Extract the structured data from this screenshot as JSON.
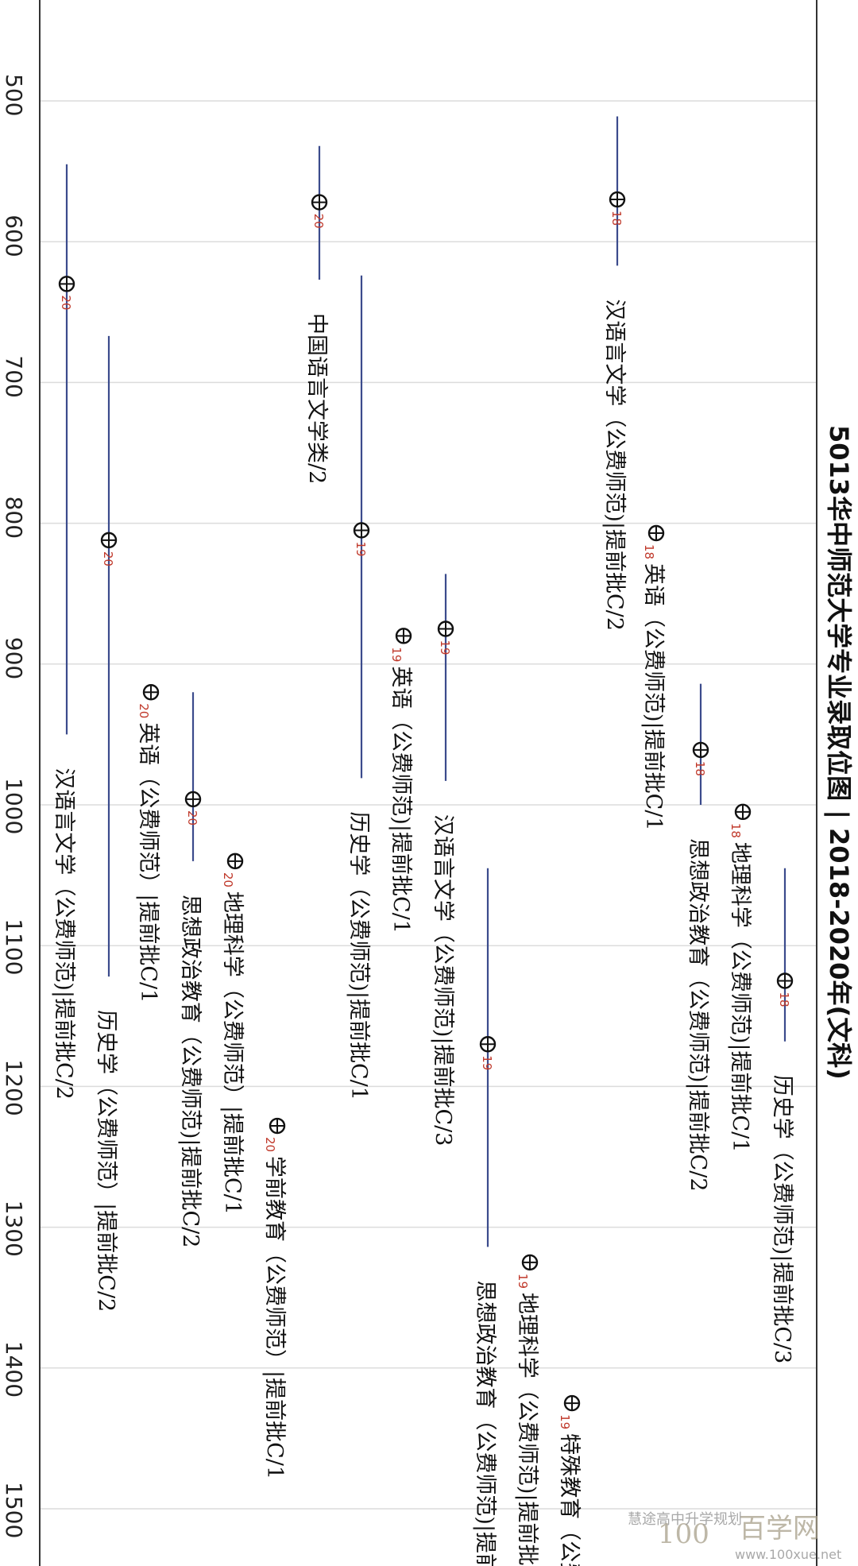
{
  "chart_data": {
    "type": "scatter",
    "title": "5013华中师范大学专业录取位图 | 2018-2020年(文科)",
    "axis": {
      "range": [
        440,
        1540
      ],
      "ticks": [
        500,
        600,
        700,
        800,
        900,
        1000,
        1100,
        1200,
        1300,
        1400,
        1500
      ],
      "grid": true
    },
    "points": [
      {
        "label": "汉语言文学（公费师范)|提前批C/2",
        "year": "20",
        "value": 630,
        "range": [
          545,
          950
        ]
      },
      {
        "label": "历史学（公费师范）|提前批C/2",
        "year": "20",
        "value": 812,
        "range": [
          667,
          1122
        ]
      },
      {
        "label": "英语（公费师范）|提前批C/1",
        "year": "20",
        "value": 920
      },
      {
        "label": "思想政治教育（公费师范)|提前批C/2",
        "year": "20",
        "value": 996,
        "range": [
          920,
          1040
        ]
      },
      {
        "label": "地理科学（公费师范）|提前批C/1",
        "year": "20",
        "value": 1040
      },
      {
        "label": "学前教育（公费师范）|提前批C/1",
        "year": "20",
        "value": 1228
      },
      {
        "label": "中国语言文学类/2",
        "year": "20",
        "value": 572,
        "range": [
          532,
          627
        ]
      },
      {
        "label": "历史学（公费师范)|提前批C/1",
        "year": "19",
        "value": 805,
        "range": [
          624,
          981
        ]
      },
      {
        "label": "英语（公费师范)|提前批C/1",
        "year": "19",
        "value": 880
      },
      {
        "label": "汉语言文学（公费师范)|提前批C/3",
        "year": "19",
        "value": 875,
        "range": [
          836,
          983
        ]
      },
      {
        "label": "思想政治教育（公费师范)|提前批",
        "year": "19",
        "value": 1170,
        "range": [
          1045,
          1314
        ]
      },
      {
        "label": "地理科学（公费师范)|提前批",
        "year": "19",
        "value": 1325
      },
      {
        "label": "特殊教育（公费",
        "year": "19",
        "value": 1425
      },
      {
        "label": "汉语言文学（公费师范)|提前批C/2",
        "year": "18",
        "value": 570,
        "range": [
          511,
          617
        ]
      },
      {
        "label": "英语（公费师范)|提前批C/1",
        "year": "18",
        "value": 807
      },
      {
        "label": "思想政治教育（公费师范)|提前批C/2",
        "year": "18",
        "value": 961,
        "range": [
          914,
          1000
        ]
      },
      {
        "label": "地理科学（公费师范)|提前批C/1",
        "year": "18",
        "value": 1005
      },
      {
        "label": "历史学（公费师范)|提前批C/3",
        "year": "18",
        "value": 1125,
        "range": [
          1045,
          1168
        ]
      }
    ],
    "series_colors": {
      "line": "#3b4b8c",
      "year_label": "#c0392b",
      "grid": "#dcdcdc"
    }
  },
  "watermark": {
    "logo_text": "100",
    "brand": "百学网",
    "account": "慧途高中升学规划",
    "url": "www.100xue.net"
  }
}
